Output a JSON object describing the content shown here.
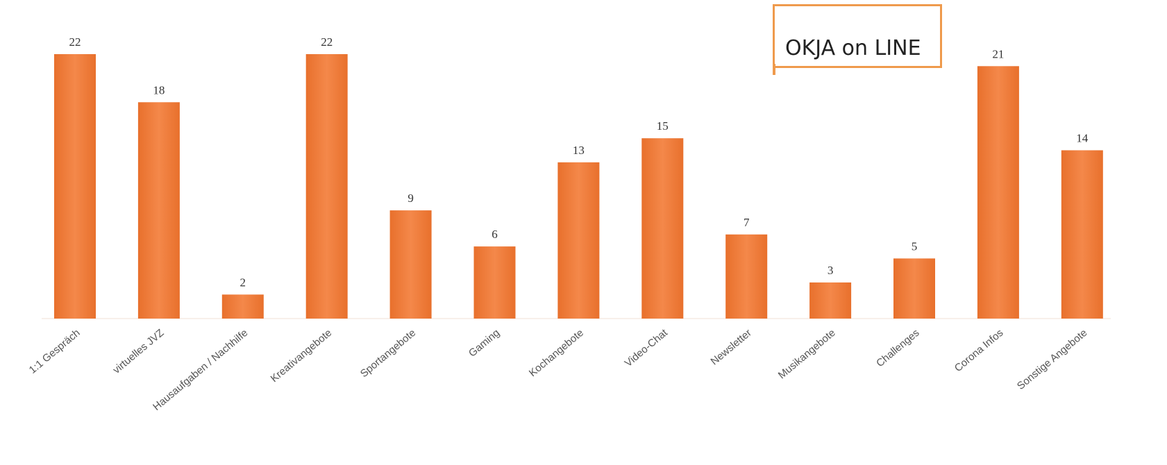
{
  "chart_data": {
    "type": "bar",
    "title": "OKJA on LINE",
    "categories": [
      "1:1 Gespräch",
      "virtuelles JVZ",
      "Hausaufgaben / Nachhilfe",
      "Kreativangebote",
      "Sportangebote",
      "Gaming",
      "Kochangebote",
      "Video-Chat",
      "Newsletter",
      "Musikangebote",
      "Challenges",
      "Corona Infos",
      "Sonstige Angebote"
    ],
    "values": [
      22,
      18,
      2,
      22,
      9,
      6,
      13,
      15,
      7,
      3,
      5,
      21,
      14
    ],
    "ylim": [
      0,
      22
    ],
    "grid": false,
    "legend": "none",
    "colors": {
      "bar": "#ee7a33",
      "bar_highlight": "#f4884a",
      "title_border": "#ef9a4c"
    }
  }
}
